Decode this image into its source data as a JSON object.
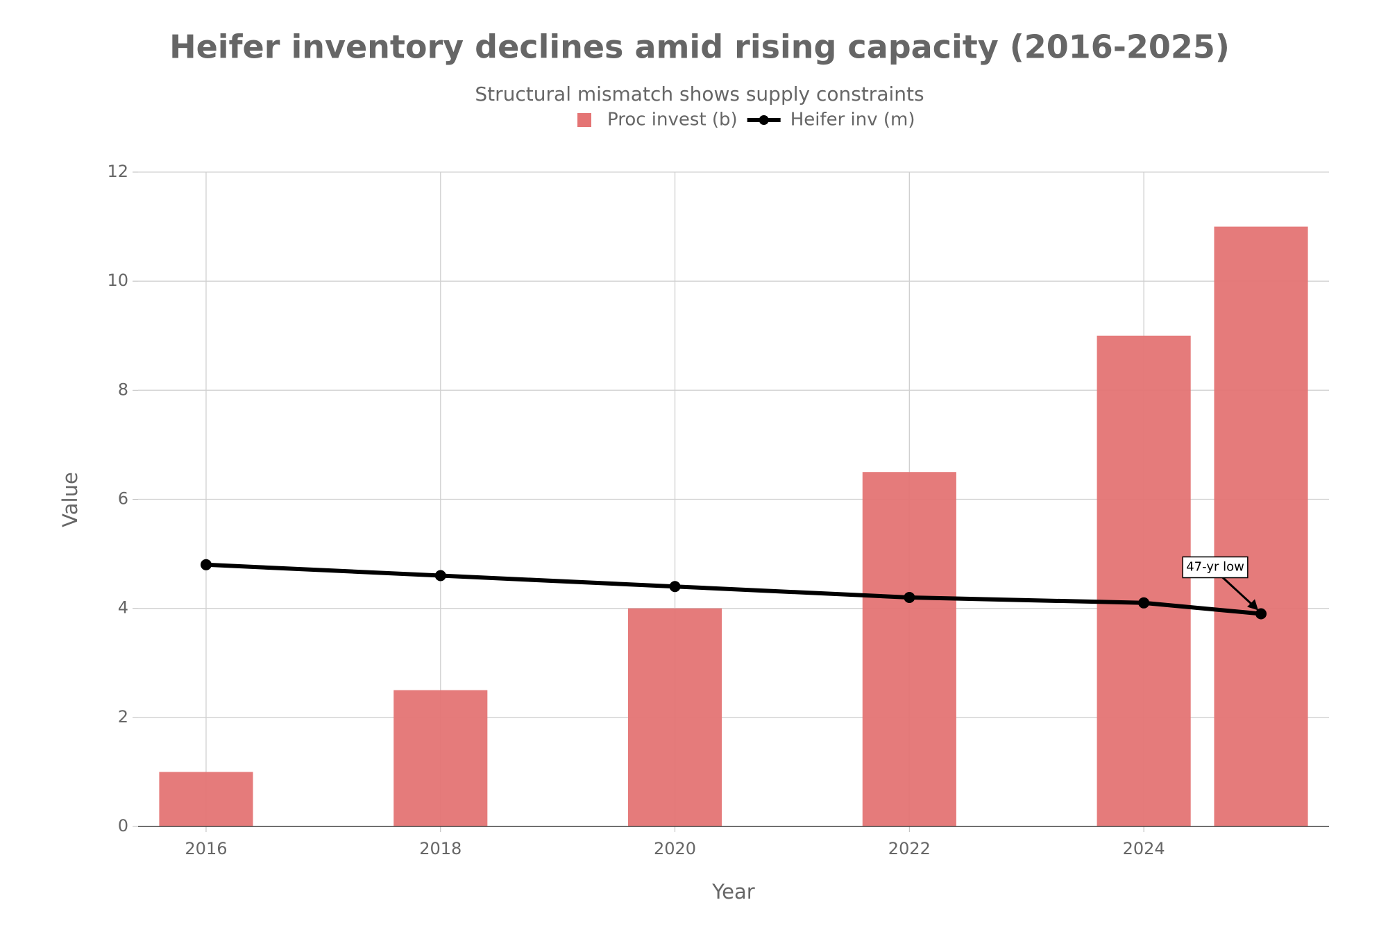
{
  "chart_data": {
    "type": "bar",
    "title": "Heifer inventory declines amid rising capacity (2016-2025)",
    "subtitle": "Structural mismatch shows supply constraints",
    "x_label": "Year",
    "y_label": "Value",
    "x": [
      2016,
      2018,
      2020,
      2022,
      2024,
      2025
    ],
    "series": [
      {
        "name": "Proc invest (b)",
        "type": "bar",
        "color": "#e47474",
        "values": [
          1,
          2.5,
          4,
          6.5,
          9,
          11
        ]
      },
      {
        "name": "Heifer inv (m)",
        "type": "line",
        "color": "#000000",
        "values": [
          4.8,
          4.6,
          4.4,
          4.2,
          4.1,
          3.9
        ]
      }
    ],
    "annotations": [
      {
        "text": "47-yr low",
        "x": 2025,
        "y": 3.9
      }
    ],
    "xlim": [
      2015.42,
      2025.58
    ],
    "xticks": [
      2016,
      2018,
      2020,
      2022,
      2024
    ],
    "ylim": [
      0,
      12
    ],
    "yticks": [
      0,
      2,
      4,
      6,
      8,
      10,
      12
    ],
    "grid": true,
    "legend": "top"
  }
}
